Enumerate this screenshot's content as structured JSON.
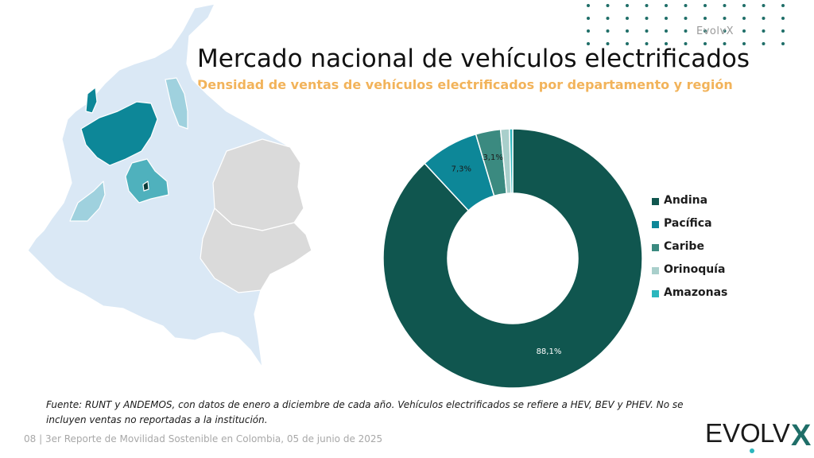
{
  "header": {
    "brand_small": "EvolvX",
    "title": "Mercado nacional de vehículos electrificados",
    "subtitle": "Densidad de ventas de vehículos electrificados por departamento y región"
  },
  "chart_data": {
    "type": "pie",
    "donut": true,
    "categories": [
      "Andina",
      "Pacífica",
      "Caribe",
      "Orinoquía",
      "Amazonas"
    ],
    "values": [
      88.1,
      7.3,
      3.1,
      1.1,
      0.4
    ],
    "data_labels": [
      "88,1%",
      "7,3%",
      "3,1%",
      "",
      ""
    ],
    "colors": [
      "#10564f",
      "#0d8798",
      "#3b8a80",
      "#a9cfcb",
      "#2bb6bd"
    ],
    "legend_position": "right"
  },
  "map": {
    "colors": {
      "highest": "#0d8798",
      "high": "#4fb1bd",
      "medium": "#9fd1de",
      "low": "#dae8f5",
      "none": "#dadada"
    }
  },
  "source_text": "Fuente: RUNT y ANDEMOS, con datos de enero a diciembre de cada año. Vehículos electrificados se refiere a HEV, BEV y PHEV. No se incluyen ventas no reportadas a la institución.",
  "footer": {
    "text": "08 | 3er Reporte de Movilidad Sostenible en Colombia, 05 de junio de 2025"
  },
  "logo": {
    "text_left": "EV",
    "text_o": "O",
    "text_right": "LV",
    "text_x": "X"
  },
  "decor": {
    "dot_color": "#1f6e68"
  }
}
